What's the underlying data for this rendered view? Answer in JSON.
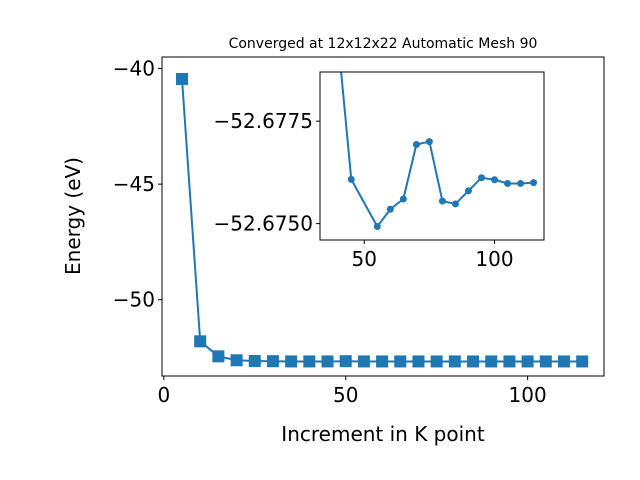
{
  "chart_data": {
    "type": "line",
    "title": "Converged at 12x12x22 Automatic Mesh 90",
    "xlabel": "Increment in K point",
    "ylabel": "Energy (eV)",
    "color": "#1f77b4",
    "main": {
      "xlim": [
        -0.5,
        121
      ],
      "ylim": [
        -53.3,
        -39.5
      ],
      "xticks": [
        0,
        50,
        100
      ],
      "yticks": [
        -40,
        -45,
        -50
      ],
      "xtick_labels": [
        "0",
        "50",
        "100"
      ],
      "ytick_labels": [
        "−40",
        "−45",
        "−50"
      ],
      "marker": "square",
      "x": [
        5,
        10,
        15,
        20,
        25,
        30,
        35,
        40,
        45,
        50,
        55,
        60,
        65,
        70,
        75,
        80,
        85,
        90,
        95,
        100,
        105,
        110,
        115
      ],
      "y": [
        -40.45,
        -51.8,
        -52.45,
        -52.62,
        -52.65,
        -52.66,
        -52.67,
        -52.67,
        -52.67,
        -52.66,
        -52.67,
        -52.67,
        -52.67,
        -52.67,
        -52.67,
        -52.67,
        -52.67,
        -52.67,
        -52.67,
        -52.67,
        -52.67,
        -52.67,
        -52.67
      ]
    },
    "inset": {
      "xlim": [
        33,
        119
      ],
      "ylim": [
        -52.6746,
        -52.6787
      ],
      "xticks": [
        50,
        100
      ],
      "yticks": [
        -52.6775,
        -52.675
      ],
      "xtick_labels": [
        "50",
        "100"
      ],
      "ytick_labels": [
        "−52.6775",
        "−52.6750"
      ],
      "marker": "circle",
      "x": [
        40,
        45,
        55,
        60,
        65,
        70,
        75,
        80,
        85,
        90,
        95,
        100,
        105,
        110,
        115
      ],
      "y": [
        -52.67945,
        -52.67608,
        -52.67493,
        -52.67535,
        -52.6756,
        -52.67693,
        -52.677,
        -52.67555,
        -52.67548,
        -52.6758,
        -52.67612,
        -52.67607,
        -52.67598,
        -52.67598,
        -52.676
      ]
    }
  }
}
